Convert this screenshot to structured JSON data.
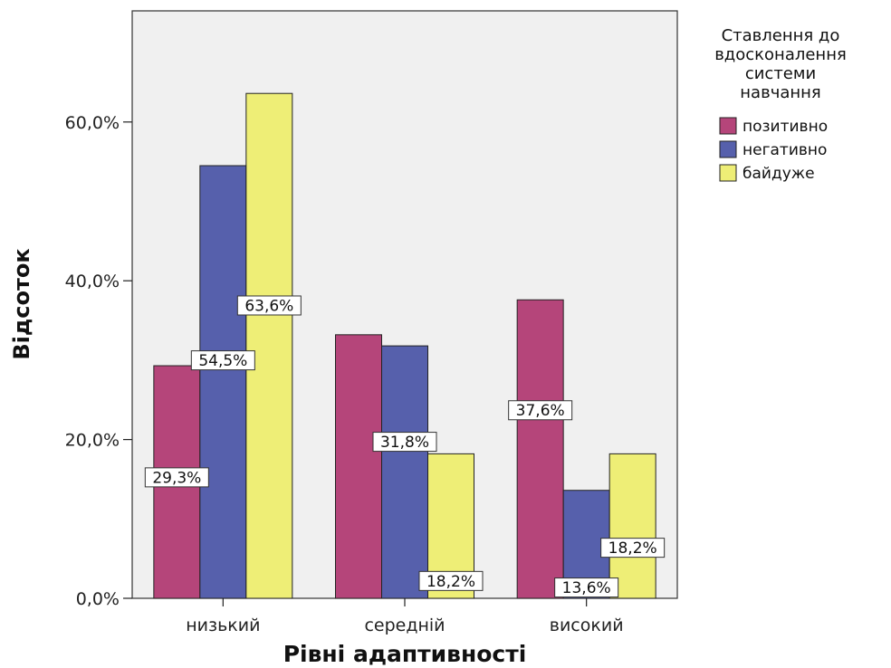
{
  "chart_data": {
    "type": "bar",
    "xlabel": "Рівні адаптивності",
    "ylabel": "Відсоток",
    "categories": [
      "низький",
      "середній",
      "високий"
    ],
    "ylim": [
      0,
      74
    ],
    "yticks": [
      0,
      20,
      40,
      60
    ],
    "ytick_labels": [
      "0,0%",
      "20,0%",
      "40,0%",
      "60,0%"
    ],
    "grid": false,
    "legend_title": "Ставлення до вдосконалення системи навчання",
    "legend_title_lines": [
      "Ставлення до",
      "вдосконалення",
      "системи",
      "навчання"
    ],
    "legend_position": "right",
    "series": [
      {
        "name": "позитивно",
        "color": "#B5457A",
        "values": [
          29.3,
          33.2,
          37.6
        ],
        "labels": [
          "29,3%",
          "",
          "37,6%"
        ]
      },
      {
        "name": "негативно",
        "color": "#5660AC",
        "values": [
          54.5,
          31.8,
          13.6
        ],
        "labels": [
          "54,5%",
          "31,8%",
          "13,6%"
        ]
      },
      {
        "name": "байдуже",
        "color": "#EEEE76",
        "values": [
          63.6,
          18.2,
          18.2
        ],
        "labels": [
          "63,6%",
          "18,2%",
          "18,2%"
        ]
      }
    ],
    "plot_background": "#F0F0F0"
  }
}
